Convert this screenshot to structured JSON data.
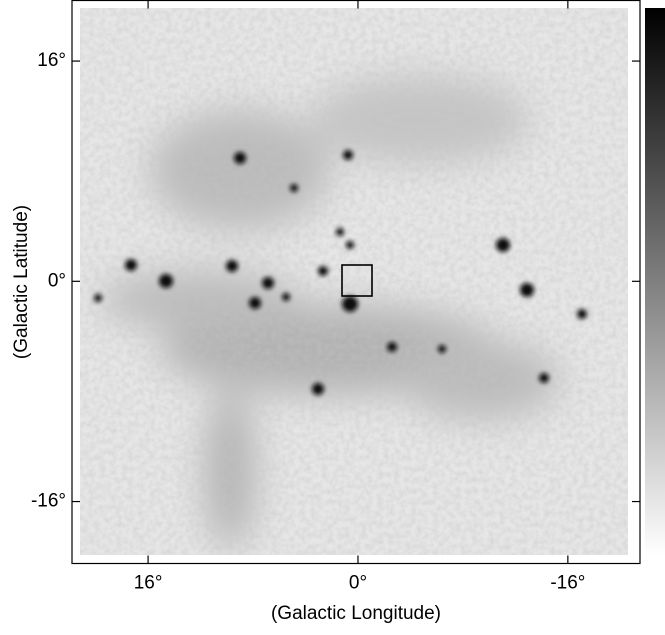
{
  "chart_data": {
    "type": "image",
    "xlabel": "(Galactic Longitude)",
    "ylabel": "(Galactic Latitude)",
    "xlim": [
      21.8,
      -21.5
    ],
    "ylim": [
      -20.5,
      20.4
    ],
    "xticks": [
      {
        "value": 16,
        "label": "16°"
      },
      {
        "value": 0,
        "label": "0°"
      },
      {
        "value": -16,
        "label": "-16°"
      }
    ],
    "yticks": [
      {
        "value": 16,
        "label": "16°"
      },
      {
        "value": 0,
        "label": "0°"
      },
      {
        "value": -16,
        "label": "-16°"
      }
    ],
    "colorbar": true
  }
}
